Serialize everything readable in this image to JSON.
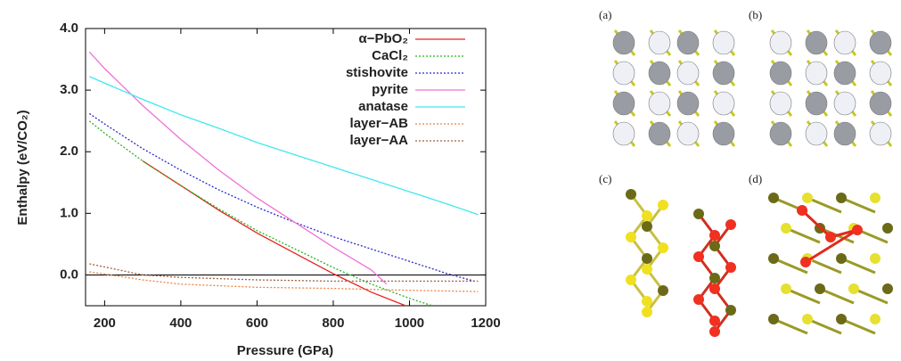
{
  "chart_data": {
    "type": "line",
    "xlabel": "Pressure (GPa)",
    "ylabel": "Enthalpy (eV/CO₂)",
    "xlim": [
      150,
      1200
    ],
    "ylim": [
      -0.5,
      4.0
    ],
    "xticks": [
      200,
      400,
      600,
      800,
      1000,
      1200
    ],
    "yticks": [
      {
        "value": 0,
        "label": "0.0"
      },
      {
        "value": 1,
        "label": "1.0"
      },
      {
        "value": 2,
        "label": "2.0"
      },
      {
        "value": 3,
        "label": "3.0"
      },
      {
        "value": 4,
        "label": "4.0"
      }
    ],
    "legend": "upper right",
    "series": [
      {
        "name": "α−PbO₂",
        "color": "#e8201c",
        "dash": false,
        "x": [
          300,
          400,
          500,
          600,
          700,
          800,
          900,
          990
        ],
        "values": [
          1.85,
          1.45,
          1.05,
          0.68,
          0.35,
          0.02,
          -0.28,
          -0.5
        ]
      },
      {
        "name": "CaCl₂",
        "color": "#22b822",
        "dash": true,
        "x": [
          160,
          200,
          300,
          400,
          500,
          600,
          700,
          800,
          900,
          1000,
          1060
        ],
        "values": [
          2.5,
          2.3,
          1.85,
          1.45,
          1.07,
          0.72,
          0.42,
          0.12,
          -0.15,
          -0.38,
          -0.5
        ]
      },
      {
        "name": "stishovite",
        "color": "#2a2ad0",
        "dash": true,
        "x": [
          160,
          200,
          300,
          400,
          500,
          600,
          700,
          800,
          900,
          1000,
          1100,
          1170
        ],
        "values": [
          2.62,
          2.45,
          2.05,
          1.7,
          1.38,
          1.1,
          0.85,
          0.62,
          0.42,
          0.22,
          0.02,
          -0.1
        ]
      },
      {
        "name": "pyrite",
        "color": "#f070d8",
        "dash": false,
        "x": [
          160,
          200,
          300,
          400,
          500,
          600,
          700,
          800,
          900,
          940
        ],
        "values": [
          3.62,
          3.35,
          2.75,
          2.2,
          1.7,
          1.25,
          0.85,
          0.45,
          0.08,
          -0.15
        ]
      },
      {
        "name": "anatase",
        "color": "#40e8f0",
        "dash": false,
        "x": [
          160,
          300,
          400,
          500,
          600,
          700,
          800,
          900,
          1000,
          1100,
          1180
        ],
        "values": [
          3.22,
          2.85,
          2.6,
          2.38,
          2.15,
          1.95,
          1.75,
          1.55,
          1.35,
          1.15,
          0.98
        ]
      },
      {
        "name": "layer−AB",
        "color": "#f08040",
        "dash": true,
        "x": [
          160,
          300,
          400,
          600,
          800,
          1000,
          1180
        ],
        "values": [
          0.05,
          -0.08,
          -0.15,
          -0.2,
          -0.22,
          -0.25,
          -0.27
        ]
      },
      {
        "name": "layer−AA",
        "color": "#a06040",
        "dash": true,
        "x": [
          160,
          300,
          400,
          600,
          800,
          1000,
          1180
        ],
        "values": [
          0.18,
          0.0,
          -0.04,
          -0.08,
          -0.1,
          -0.1,
          -0.1
        ]
      }
    ]
  },
  "panel_labels": [
    "(a)",
    "(b)",
    "(c)",
    "(d)"
  ]
}
